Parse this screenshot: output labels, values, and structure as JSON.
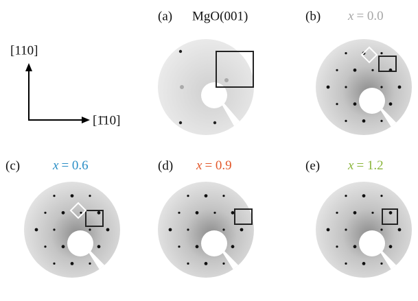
{
  "axes": {
    "vertical": "[110]",
    "horizontal": "[1̄10]"
  },
  "panels": [
    {
      "tag": "(a)",
      "label": "MgO(001)"
    },
    {
      "tag": "(b)",
      "variable": "x",
      "value": "= 0.0",
      "color": "#a6a6a6"
    },
    {
      "tag": "(c)",
      "variable": "x",
      "value": "= 0.6",
      "color": "#2a8ec6"
    },
    {
      "tag": "(d)",
      "variable": "x",
      "value": "= 0.9",
      "color": "#e2572a"
    },
    {
      "tag": "(e)",
      "variable": "x",
      "value": "= 1.2",
      "color": "#8ab53a"
    }
  ]
}
